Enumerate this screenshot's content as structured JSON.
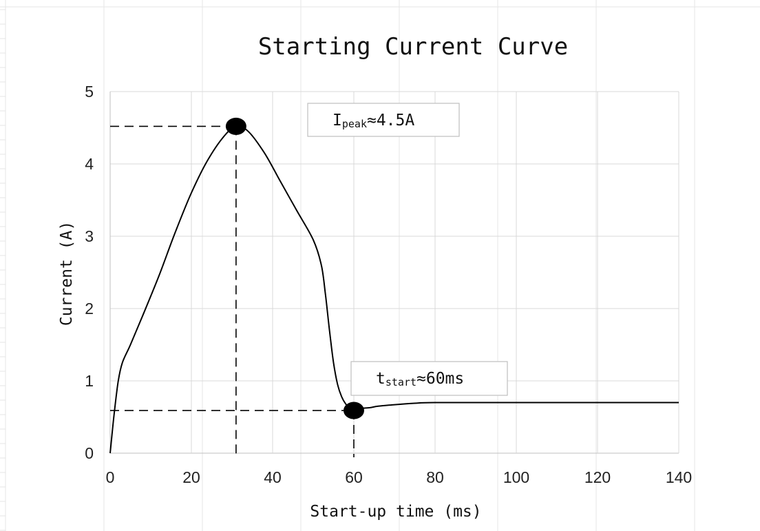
{
  "colors": {
    "curve": "#000000",
    "grid": "#d9d9d9",
    "axis": "#bfbfbf",
    "marker": "#000000",
    "sheet_line": "#e6e6e6"
  },
  "chart_data": {
    "type": "line",
    "title": "Starting Current Curve",
    "xlabel": "Start-up time  (ms)",
    "ylabel": "Current (A)",
    "xlim": [
      0,
      140
    ],
    "ylim": [
      0,
      5
    ],
    "xticks": [
      0,
      20,
      40,
      60,
      80,
      100,
      120,
      140
    ],
    "yticks": [
      0,
      1,
      2,
      3,
      4,
      5
    ],
    "grid": true,
    "legend": "none",
    "series": [
      {
        "x": [
          0,
          1,
          2,
          3,
          5,
          8,
          12,
          16,
          20,
          24,
          28,
          31,
          34,
          38,
          42,
          46,
          50,
          52,
          53,
          54,
          55,
          56,
          57,
          58,
          59,
          60,
          61,
          62,
          64,
          66,
          70,
          75,
          80,
          100,
          120,
          140
        ],
        "values": [
          0,
          0.55,
          1.0,
          1.25,
          1.5,
          1.9,
          2.45,
          3.05,
          3.6,
          4.05,
          4.38,
          4.52,
          4.45,
          4.15,
          3.75,
          3.35,
          2.95,
          2.6,
          2.2,
          1.7,
          1.25,
          0.95,
          0.78,
          0.68,
          0.62,
          0.6,
          0.6,
          0.62,
          0.63,
          0.65,
          0.67,
          0.69,
          0.7,
          0.7,
          0.7,
          0.7
        ]
      }
    ],
    "markers": [
      {
        "x": 31,
        "y": 4.52
      },
      {
        "x": 60,
        "y": 0.59
      }
    ],
    "annotations": [
      {
        "main": "I",
        "sub": "peak",
        "value": "≈4.5A",
        "x": 31,
        "y": 4.52
      },
      {
        "main": "t",
        "sub": "start",
        "value": "≈60ms",
        "x": 60,
        "y": 0.59
      }
    ]
  }
}
